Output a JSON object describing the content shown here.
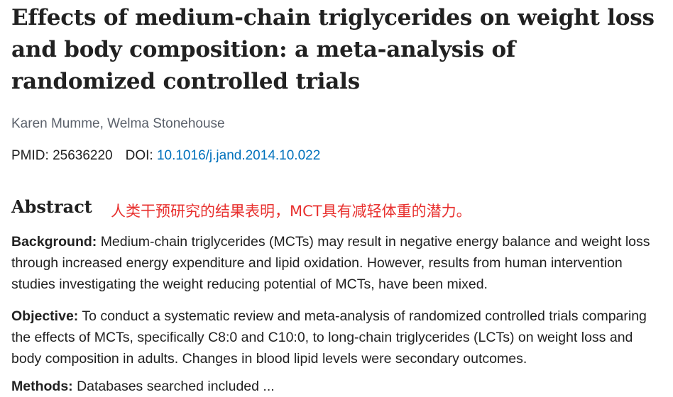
{
  "article": {
    "title": "Effects of medium-chain triglycerides on weight loss and body composition: a meta-analysis of randomized controlled trials",
    "authors": "Karen Mumme, Welma Stonehouse",
    "pmid_label": "PMID:",
    "pmid": "25636220",
    "doi_label": "DOI:",
    "doi": "10.1016/j.jand.2014.10.022"
  },
  "abstract": {
    "heading": "Abstract",
    "annotation": "人类干预研究的结果表明，MCT具有减轻体重的潜力。",
    "background_label": "Background:",
    "background_text": "Medium-chain triglycerides (MCTs) may result in negative energy balance and weight loss through increased energy expenditure and lipid oxidation. However, results from human intervention studies investigating the weight reducing potential of MCTs, have been mixed.",
    "objective_label": "Objective:",
    "objective_text": "To conduct a systematic review and meta-analysis of randomized controlled trials comparing the effects of MCTs, specifically C8:0 and C10:0, to long-chain triglycerides (LCTs) on weight loss and body composition in adults. Changes in blood lipid levels were secondary outcomes.",
    "methods_label": "Methods:",
    "methods_text": "Databases searched included ..."
  }
}
